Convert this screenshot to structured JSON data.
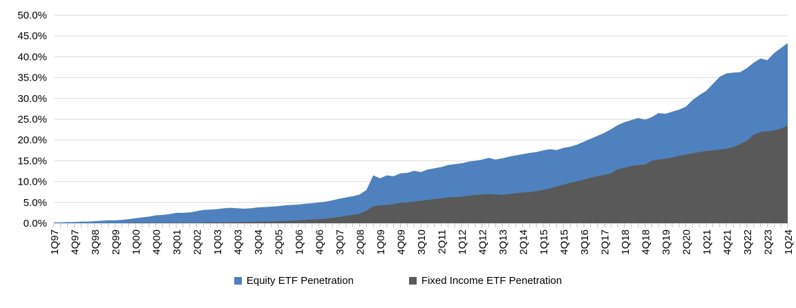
{
  "chart_data": {
    "type": "area",
    "title": "",
    "layout": "overlapping-areas",
    "grid": "horizontal",
    "legend_position": "bottom-center",
    "ylim": [
      0,
      50
    ],
    "y_ticks": [
      "0.0%",
      "5.0%",
      "10.0%",
      "15.0%",
      "20.0%",
      "25.0%",
      "30.0%",
      "35.0%",
      "40.0%",
      "45.0%",
      "50.0%"
    ],
    "x_frequency": "quarterly",
    "x_tick_every": 3,
    "x_tick_labels": [
      "1Q97",
      "4Q97",
      "3Q98",
      "2Q99",
      "1Q00",
      "4Q00",
      "3Q01",
      "2Q02",
      "1Q03",
      "4Q03",
      "3Q04",
      "2Q05",
      "1Q06",
      "4Q06",
      "3Q07",
      "2Q08",
      "1Q09",
      "4Q09",
      "3Q10",
      "2Q11",
      "1Q12",
      "4Q12",
      "3Q13",
      "2Q14",
      "1Q15",
      "4Q15",
      "3Q16",
      "2Q17",
      "1Q18",
      "4Q18",
      "3Q19",
      "2Q20",
      "1Q21",
      "4Q21",
      "3Q22",
      "2Q23",
      "1Q24"
    ],
    "colors": {
      "gridline": "#D9D9D9",
      "tick": "#BFBFBF",
      "axis_text": "#000000"
    },
    "series": [
      {
        "name": "Equity ETF Penetration",
        "color": "#4E81BD",
        "values": [
          0.2,
          0.2,
          0.3,
          0.3,
          0.4,
          0.4,
          0.5,
          0.6,
          0.7,
          0.7,
          0.8,
          1.0,
          1.2,
          1.4,
          1.6,
          1.9,
          2.0,
          2.2,
          2.5,
          2.5,
          2.6,
          2.9,
          3.2,
          3.3,
          3.4,
          3.6,
          3.7,
          3.6,
          3.5,
          3.6,
          3.8,
          3.9,
          4.0,
          4.1,
          4.3,
          4.4,
          4.5,
          4.7,
          4.8,
          5.0,
          5.2,
          5.5,
          5.9,
          6.2,
          6.5,
          6.9,
          8.0,
          11.5,
          10.8,
          11.5,
          11.3,
          12.0,
          12.1,
          12.6,
          12.3,
          12.9,
          13.2,
          13.5,
          14.0,
          14.2,
          14.4,
          14.8,
          15.0,
          15.3,
          15.7,
          15.3,
          15.6,
          16.0,
          16.3,
          16.6,
          16.9,
          17.1,
          17.5,
          17.8,
          17.6,
          18.1,
          18.4,
          18.9,
          19.6,
          20.3,
          21.0,
          21.7,
          22.6,
          23.6,
          24.3,
          24.8,
          25.3,
          24.9,
          25.5,
          26.5,
          26.3,
          26.8,
          27.3,
          28.0,
          29.6,
          30.8,
          31.8,
          33.5,
          35.2,
          36.0,
          36.2,
          36.3,
          37.3,
          38.6,
          39.6,
          39.2,
          40.9,
          42.1,
          43.3
        ]
      },
      {
        "name": "Fixed Income ETF Penetration",
        "color": "#595959",
        "values": [
          0.0,
          0.0,
          0.0,
          0.0,
          0.0,
          0.0,
          0.0,
          0.0,
          0.0,
          0.0,
          0.0,
          0.1,
          0.1,
          0.1,
          0.1,
          0.1,
          0.1,
          0.1,
          0.1,
          0.1,
          0.1,
          0.1,
          0.1,
          0.2,
          0.2,
          0.2,
          0.2,
          0.3,
          0.3,
          0.3,
          0.4,
          0.4,
          0.4,
          0.5,
          0.5,
          0.6,
          0.7,
          0.8,
          0.9,
          1.0,
          1.1,
          1.3,
          1.5,
          1.8,
          2.0,
          2.3,
          3.0,
          4.1,
          4.3,
          4.4,
          4.6,
          4.9,
          5.0,
          5.2,
          5.4,
          5.6,
          5.8,
          6.0,
          6.2,
          6.3,
          6.4,
          6.6,
          6.8,
          6.9,
          7.0,
          6.9,
          6.8,
          7.0,
          7.2,
          7.4,
          7.5,
          7.7,
          8.0,
          8.4,
          8.8,
          9.3,
          9.7,
          10.1,
          10.5,
          10.9,
          11.3,
          11.6,
          12.0,
          13.0,
          13.3,
          13.8,
          14.0,
          14.1,
          15.0,
          15.3,
          15.5,
          15.8,
          16.2,
          16.5,
          16.8,
          17.1,
          17.3,
          17.5,
          17.7,
          17.9,
          18.3,
          19.0,
          19.8,
          21.3,
          21.9,
          22.1,
          22.3,
          22.7,
          23.5
        ]
      }
    ]
  }
}
